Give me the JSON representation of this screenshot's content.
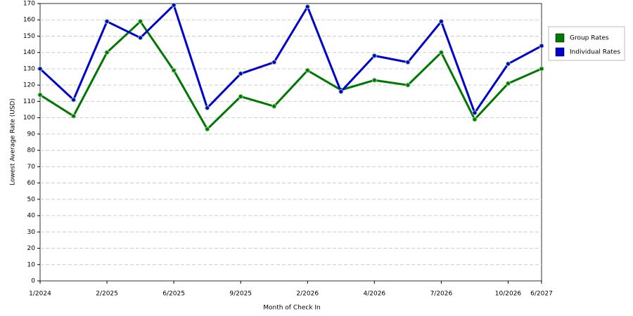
{
  "chart_data": {
    "type": "line",
    "x_label": "Month of Check In",
    "y_label": "Lowest Average Rate (USD)",
    "categories": [
      "1/2024",
      null,
      "2/2025",
      null,
      "6/2025",
      null,
      "9/2025",
      null,
      "2/2026",
      null,
      "4/2026",
      null,
      "7/2026",
      null,
      "10/2026",
      "6/2027"
    ],
    "series": [
      {
        "name": "Group Rates",
        "color": "#007700",
        "values": [
          114,
          101,
          140,
          159,
          129,
          93,
          113,
          107,
          129,
          117,
          123,
          120,
          140,
          99,
          121,
          130
        ]
      },
      {
        "name": "Individual Rates",
        "color": "#0000cc",
        "values": [
          130,
          111,
          159,
          149,
          169,
          106,
          127,
          134,
          168,
          116,
          138,
          134,
          159,
          103,
          133,
          144
        ]
      }
    ],
    "ylim": [
      0,
      170
    ],
    "yticks": [
      0,
      10,
      20,
      30,
      40,
      50,
      60,
      70,
      80,
      90,
      100,
      110,
      120,
      130,
      140,
      150,
      160,
      170
    ],
    "grid": true
  }
}
